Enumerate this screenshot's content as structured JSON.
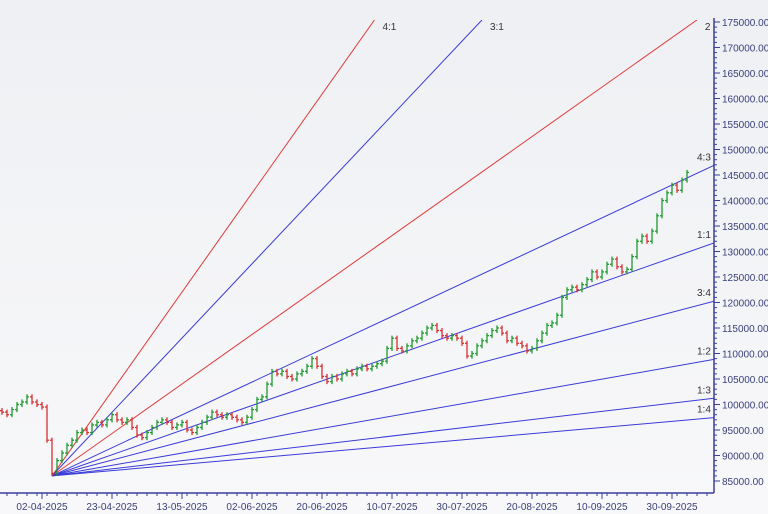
{
  "chart_data": {
    "type": "ohlc-bar with gann fan",
    "ylim": [
      85000,
      175000
    ],
    "y_ticks": [
      "85000.00",
      "90000.00",
      "95000.00",
      "100000.00",
      "105000.00",
      "110000.00",
      "115000.00",
      "120000.00",
      "125000.00",
      "130000.00",
      "135000.00",
      "140000.00",
      "145000.00",
      "150000.00",
      "155000.00",
      "160000.00",
      "165000.00",
      "170000.00",
      "175000.00"
    ],
    "x_ticks": [
      {
        "bar": 8,
        "label": "02-04-2025"
      },
      {
        "bar": 22,
        "label": "23-04-2025"
      },
      {
        "bar": 36,
        "label": "13-05-2025"
      },
      {
        "bar": 50,
        "label": "02-06-2025"
      },
      {
        "bar": 64,
        "label": "20-06-2025"
      },
      {
        "bar": 78,
        "label": "10-07-2025"
      },
      {
        "bar": 92,
        "label": "30-07-2025"
      },
      {
        "bar": 106,
        "label": "20-08-2025"
      },
      {
        "bar": 120,
        "label": "10-09-2025"
      },
      {
        "bar": 134,
        "label": "30-09-2025"
      }
    ],
    "closes": [
      98500,
      98000,
      99000,
      100000,
      100500,
      101500,
      100500,
      100000,
      99500,
      93000,
      86500,
      89000,
      90500,
      92000,
      93000,
      94500,
      95000,
      94500,
      96000,
      96500,
      96000,
      97000,
      98000,
      97000,
      96500,
      97000,
      95500,
      94000,
      93500,
      94500,
      95500,
      96500,
      97000,
      96500,
      95500,
      96000,
      96500,
      95000,
      94500,
      95500,
      96500,
      97500,
      98500,
      98000,
      97500,
      98000,
      97500,
      97000,
      96500,
      97500,
      99000,
      101000,
      101500,
      104000,
      106500,
      106000,
      106500,
      105500,
      105000,
      106000,
      106500,
      107500,
      109000,
      107500,
      105500,
      104500,
      105500,
      105000,
      106000,
      106500,
      106000,
      107000,
      107500,
      107000,
      107500,
      108000,
      108500,
      111000,
      113000,
      111000,
      110500,
      111500,
      112500,
      113000,
      114000,
      115000,
      115500,
      114500,
      113500,
      113000,
      113500,
      113000,
      112000,
      109500,
      110000,
      111500,
      112500,
      113500,
      114500,
      115000,
      114000,
      112500,
      113000,
      112000,
      111500,
      110500,
      111000,
      112500,
      114000,
      115500,
      116000,
      117500,
      121000,
      122500,
      123000,
      122500,
      123500,
      124500,
      126000,
      125000,
      126000,
      127500,
      128500,
      127000,
      126000,
      126500,
      129000,
      132000,
      133000,
      132000,
      134000,
      137000,
      140000,
      141500,
      143000,
      142000,
      144000,
      145500
    ],
    "gann_fan": {
      "origin": {
        "bar": 10,
        "price": 86000
      },
      "unit_slope_per_bar": 345,
      "lines": [
        {
          "label": "4:1",
          "ratio": 4,
          "color": "#e03a3a"
        },
        {
          "label": "3:1",
          "ratio": 3,
          "color": "#3a3ad8"
        },
        {
          "label": "2",
          "ratio": 2,
          "color": "#e03a3a"
        },
        {
          "label": "4:3",
          "ratio": 1.3333,
          "color": "#3a3ad8"
        },
        {
          "label": "1:1",
          "ratio": 1,
          "color": "#3a3ad8"
        },
        {
          "label": "3:4",
          "ratio": 0.75,
          "color": "#3a3ad8"
        },
        {
          "label": "1:2",
          "ratio": 0.5,
          "color": "#3a3ad8"
        },
        {
          "label": "1:3",
          "ratio": 0.3333,
          "color": "#3a3ad8"
        },
        {
          "label": "1:4",
          "ratio": 0.25,
          "color": "#3a3ad8"
        }
      ]
    },
    "colors": {
      "up": "#1e9a2e",
      "down": "#d83030",
      "axis": "#3a3f9a",
      "background": "#f4f5f7"
    },
    "grid": false
  }
}
